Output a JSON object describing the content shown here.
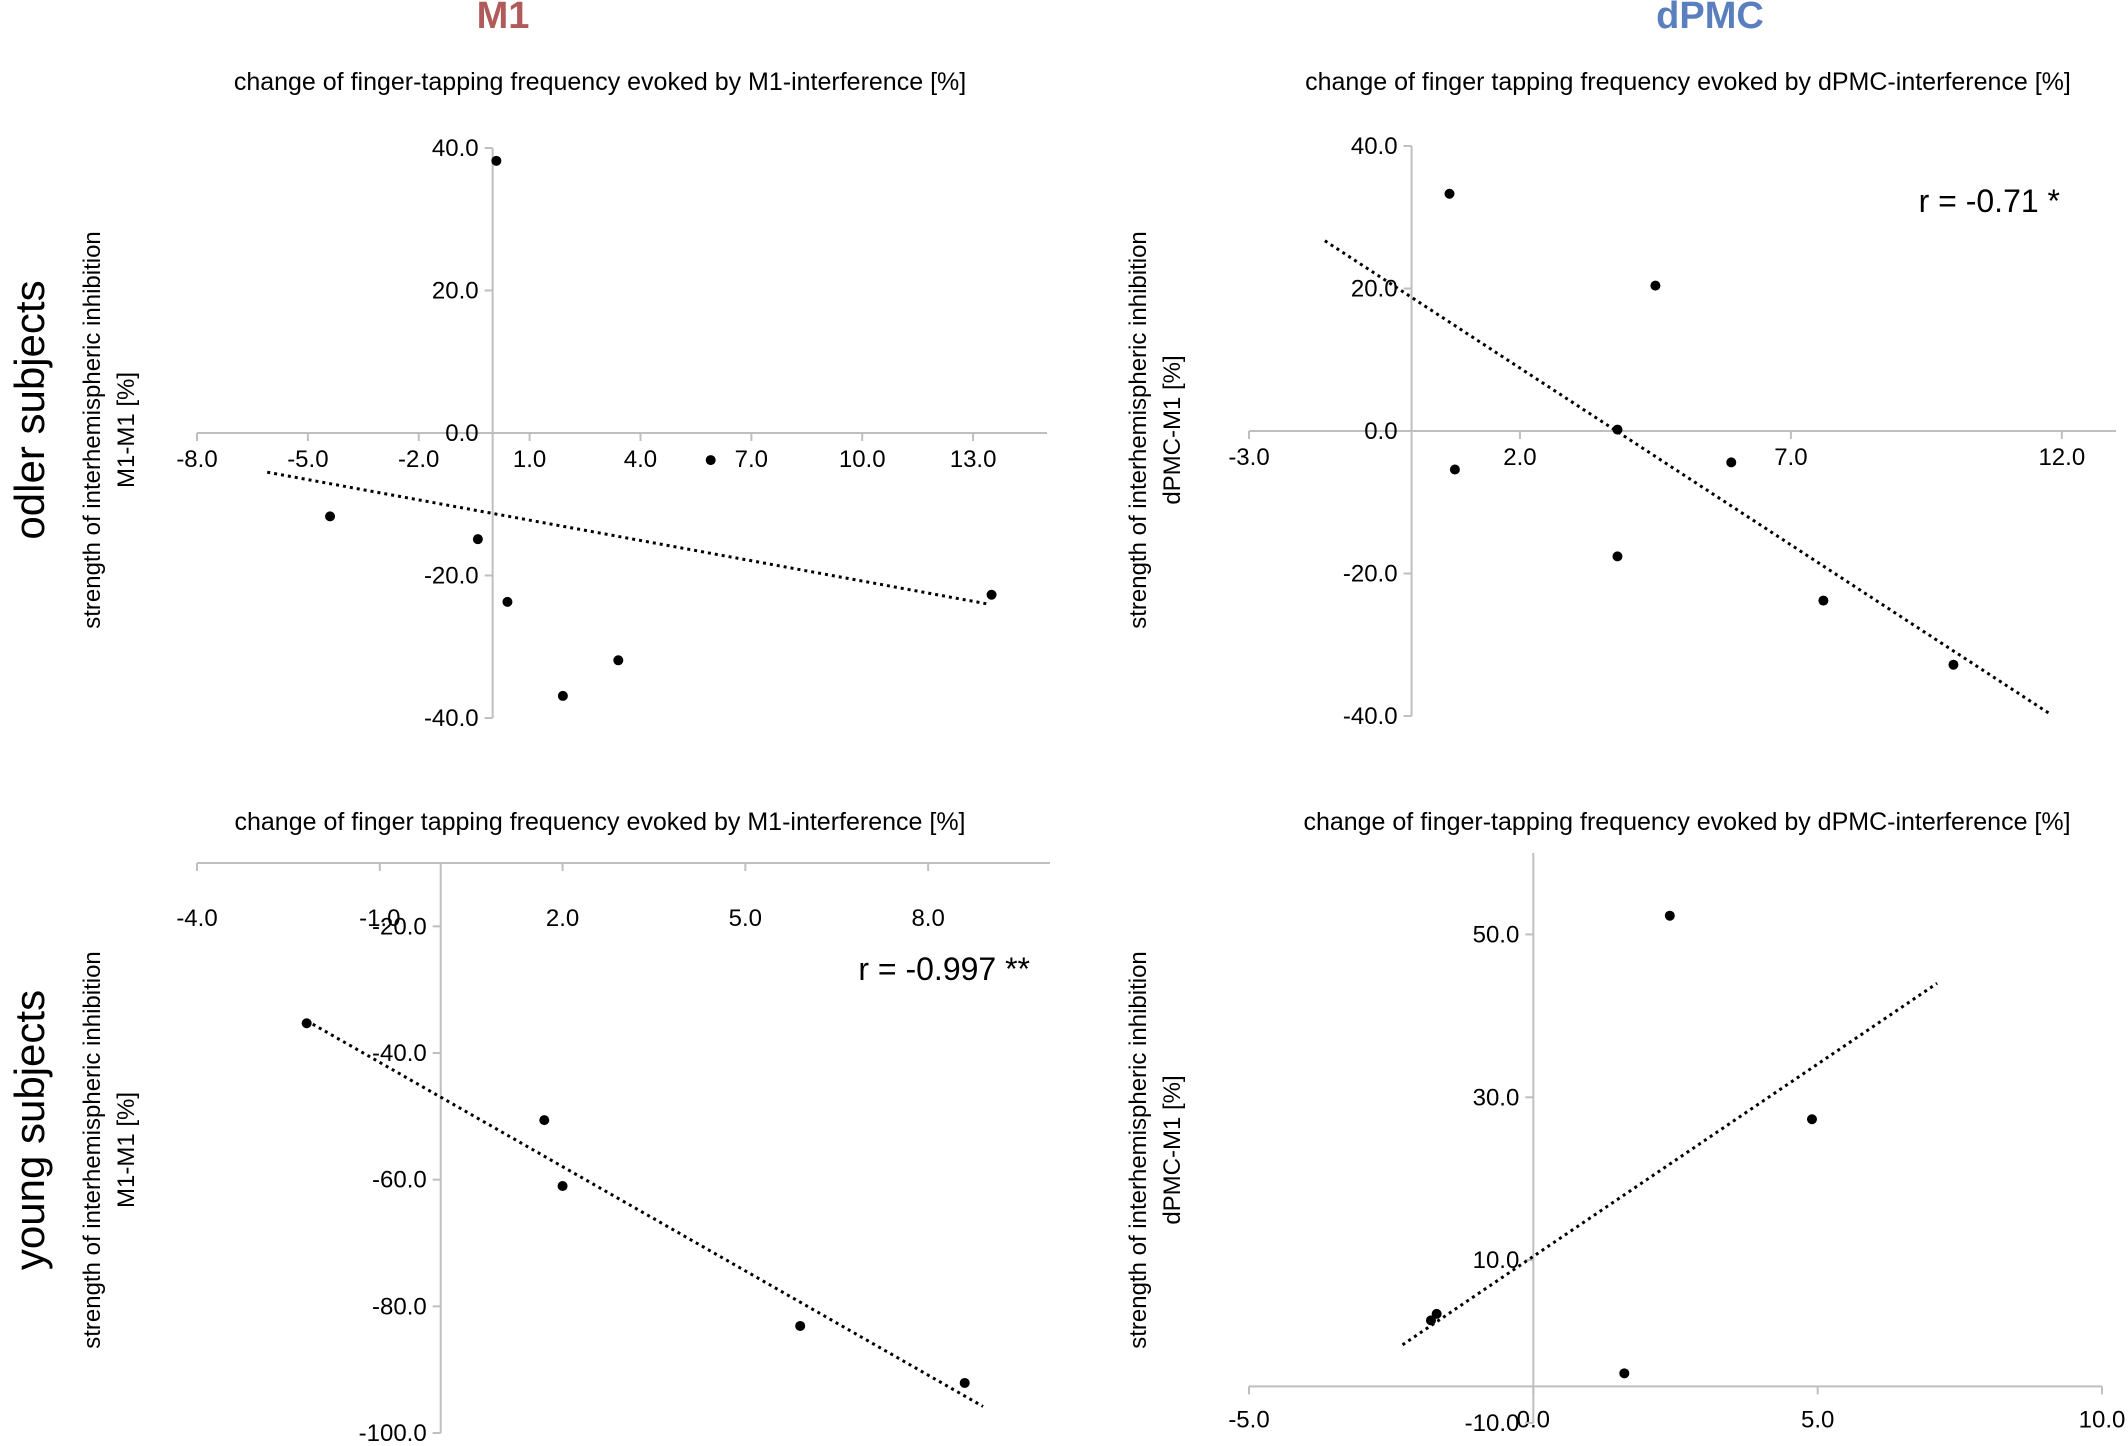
{
  "columns": {
    "left": {
      "label": "M1",
      "color": "#b05a5a"
    },
    "right": {
      "label": "dPMC",
      "color": "#5a7fbf"
    }
  },
  "rows": {
    "top": {
      "label": "odler subjects"
    },
    "bottom": {
      "label": "young subjects"
    }
  },
  "chart_data": [
    {
      "type": "scatter",
      "id": "old-m1",
      "title": "change of finger-tapping frequency evoked by M1-interference [%]",
      "ylabel_lines": [
        "strength of interhemispheric inhibition",
        "M1-M1 [%]"
      ],
      "xlim": [
        -8,
        15
      ],
      "ylim": [
        -40,
        40
      ],
      "xticks": [
        "-8.0",
        "-5.0",
        "-2.0",
        "1.0",
        "4.0",
        "7.0",
        "10.0",
        "13.0"
      ],
      "xtick_values": [
        -8,
        -5,
        -2,
        1,
        4,
        7,
        10,
        13
      ],
      "yticks": [
        "40.0",
        "20.0",
        "0.0",
        "-20.0",
        "-40.0"
      ],
      "ytick_values": [
        40,
        20,
        0,
        -20,
        -40
      ],
      "points": [
        [
          0.1,
          38.2
        ],
        [
          -4.4,
          -11.7
        ],
        [
          -0.4,
          -14.9
        ],
        [
          0.4,
          -23.7
        ],
        [
          1.9,
          -36.9
        ],
        [
          3.4,
          -31.9
        ],
        [
          5.9,
          -3.8
        ],
        [
          13.5,
          -22.7
        ]
      ],
      "trendline": {
        "x": [
          -6.1,
          13.4
        ],
        "y": [
          -5.5,
          -24.0
        ]
      },
      "grid": false
    },
    {
      "type": "scatter",
      "id": "old-dpmc",
      "title": "change of finger tapping frequency evoked by dPMC-interference [%]",
      "ylabel_lines": [
        "strength of interhemispheric inhibition",
        "dPMC-M1 [%]"
      ],
      "xlim": [
        -3,
        13
      ],
      "ylim": [
        -40,
        40
      ],
      "xticks": [
        "-3.0",
        "2.0",
        "7.0",
        "12.0"
      ],
      "xtick_values": [
        -3,
        2,
        7,
        12
      ],
      "yticks": [
        "40.0",
        "20.0",
        "0.0",
        "-20.0",
        "-40.0"
      ],
      "ytick_values": [
        40,
        20,
        0,
        -20,
        -40
      ],
      "points": [
        [
          0.7,
          33.3
        ],
        [
          4.5,
          20.4
        ],
        [
          3.8,
          0.2
        ],
        [
          0.8,
          -5.4
        ],
        [
          5.9,
          -4.4
        ],
        [
          3.8,
          -17.6
        ],
        [
          7.6,
          -23.8
        ],
        [
          10.0,
          -32.8
        ]
      ],
      "trendline": {
        "x": [
          -1.6,
          11.8
        ],
        "y": [
          26.7,
          -39.8
        ]
      },
      "annotation": "r = -0.71 *",
      "grid": false
    },
    {
      "type": "scatter",
      "id": "young-m1",
      "title": "change of finger tapping frequency evoked by M1-interference [%]",
      "ylabel_lines": [
        "strength of interhemispheric inhibition",
        "M1-M1 [%]"
      ],
      "xlim": [
        -4,
        10
      ],
      "ylim": [
        -100,
        -10
      ],
      "xticks": [
        "-4.0",
        "-1.0",
        "2.0",
        "5.0",
        "8.0"
      ],
      "xtick_values": [
        -4,
        -1,
        2,
        5,
        8
      ],
      "yticks": [
        "-20.0",
        "-40.0",
        "-60.0",
        "-80.0",
        "-100.0"
      ],
      "ytick_values": [
        -20,
        -40,
        -60,
        -80,
        -100
      ],
      "points": [
        [
          -2.2,
          -35.3
        ],
        [
          1.7,
          -50.6
        ],
        [
          2.0,
          -61.0
        ],
        [
          5.9,
          -83.1
        ],
        [
          8.6,
          -92.1
        ]
      ],
      "trendline": {
        "x": [
          -2.2,
          8.9
        ],
        "y": [
          -34.9,
          -95.8
        ]
      },
      "annotation": "r = -0.997 **",
      "grid": false
    },
    {
      "type": "scatter",
      "id": "young-dpmc",
      "title": "change of finger-tapping frequency evoked by dPMC-interference [%]",
      "ylabel_lines": [
        "strength of interhemispheric inhibition",
        "dPMC-M1 [%]"
      ],
      "xlim": [
        -5,
        10
      ],
      "ylim": [
        -10,
        60
      ],
      "xticks": [
        "-5.0",
        "0.0",
        "5.0",
        "10.0"
      ],
      "xtick_values": [
        -5,
        0,
        5,
        10
      ],
      "yticks": [
        "50.0",
        "30.0",
        "10.0",
        "-10.0"
      ],
      "ytick_values": [
        50,
        30,
        10,
        -10
      ],
      "points": [
        [
          2.4,
          52.3
        ],
        [
          4.9,
          27.3
        ],
        [
          -1.7,
          3.4
        ],
        [
          -1.8,
          2.6
        ],
        [
          1.6,
          -3.9
        ]
      ],
      "trendline": {
        "x": [
          -2.3,
          7.1
        ],
        "y": [
          -0.4,
          44.0
        ]
      },
      "grid": false
    }
  ]
}
